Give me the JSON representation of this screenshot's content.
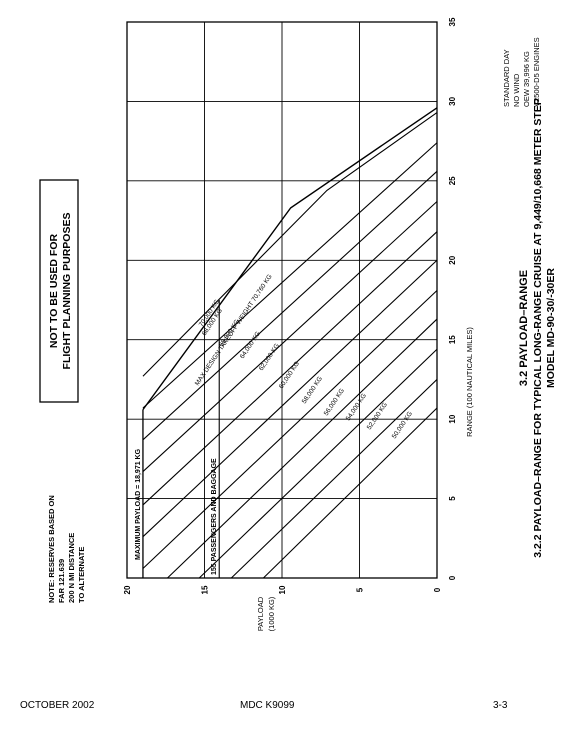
{
  "chart_data": {
    "type": "line",
    "title": "3.2  PAYLOAD–RANGE",
    "subtitle": "3.2.2  PAYLOAD–RANGE FOR TYPICAL LONG-RANGE CRUISE AT 9,449/10,668 METER STEP",
    "subtitle2": "MODEL MD-90-30/-30ER",
    "xlabel": "RANGE (100 NAUTICAL MILES)",
    "ylabel_line1": "PAYLOAD",
    "ylabel_line2": "(1000 KG)",
    "xlim": [
      0,
      35
    ],
    "ylim": [
      0,
      20
    ],
    "x_ticks": [
      "0",
      "5",
      "10",
      "15",
      "20",
      "25",
      "30",
      "35"
    ],
    "y_ticks": [
      "0",
      "5",
      "10",
      "15",
      "20"
    ],
    "grid": true,
    "notes": {
      "conditions": [
        "STANDARD DAY",
        "NO WIND",
        "OEW 39,996 KG",
        "V2500-D5 ENGINES"
      ],
      "warning": [
        "NOT TO BE USED FOR",
        "FLIGHT PLANNING PURPOSES"
      ],
      "reserves": [
        "NOTE: RESERVES BASED ON",
        "FAR 121.639",
        "200 N MI DISTANCE",
        "TO ALTERNATE"
      ]
    },
    "max_payload": {
      "label": "MAXIMUM PAYLOAD = 18,971 KG",
      "value": 18.971
    },
    "passengers": {
      "label": "155 PASSENGERS AND BAGGAGE",
      "value": 14.05
    },
    "envelope": {
      "label": "MAX DESIGN TAKEOFF WEIGHT 70,760 KG",
      "points": [
        [
          10.6,
          18.971
        ],
        [
          23.3,
          9.44
        ],
        [
          29.6,
          0
        ]
      ]
    },
    "series": [
      {
        "name": "70,000 KG",
        "values": [
          [
            12.7,
            18.971
          ],
          [
            24.4,
            7.1
          ],
          [
            29.3,
            0
          ]
        ]
      },
      {
        "name": "68,000 KG",
        "values": [
          [
            10.7,
            18.971
          ],
          [
            27.4,
            0
          ]
        ]
      },
      {
        "name": "66,000 KG",
        "values": [
          [
            8.7,
            18.971
          ],
          [
            25.6,
            0
          ]
        ]
      },
      {
        "name": "64,000 KG",
        "values": [
          [
            6.7,
            18.971
          ],
          [
            23.7,
            0
          ]
        ]
      },
      {
        "name": "62,000 KG",
        "values": [
          [
            4.6,
            18.971
          ],
          [
            21.8,
            0
          ]
        ]
      },
      {
        "name": "60,000 KG",
        "values": [
          [
            2.6,
            18.971
          ],
          [
            20.0,
            0
          ]
        ]
      },
      {
        "name": "58,000 KG",
        "values": [
          [
            0.6,
            18.971
          ],
          [
            18.1,
            0
          ]
        ]
      },
      {
        "name": "56,000 KG",
        "values": [
          [
            0,
            17.39
          ],
          [
            16.3,
            0
          ]
        ]
      },
      {
        "name": "54,000 KG",
        "values": [
          [
            0,
            15.34
          ],
          [
            14.4,
            0
          ]
        ]
      },
      {
        "name": "52,000 KG",
        "values": [
          [
            0,
            13.27
          ],
          [
            12.5,
            0
          ]
        ]
      },
      {
        "name": "50,000 KG",
        "values": [
          [
            0,
            11.2
          ],
          [
            10.7,
            0
          ]
        ]
      }
    ]
  },
  "footer": {
    "left": "OCTOBER 2002",
    "center": "MDC K9099",
    "right": "3-3"
  }
}
